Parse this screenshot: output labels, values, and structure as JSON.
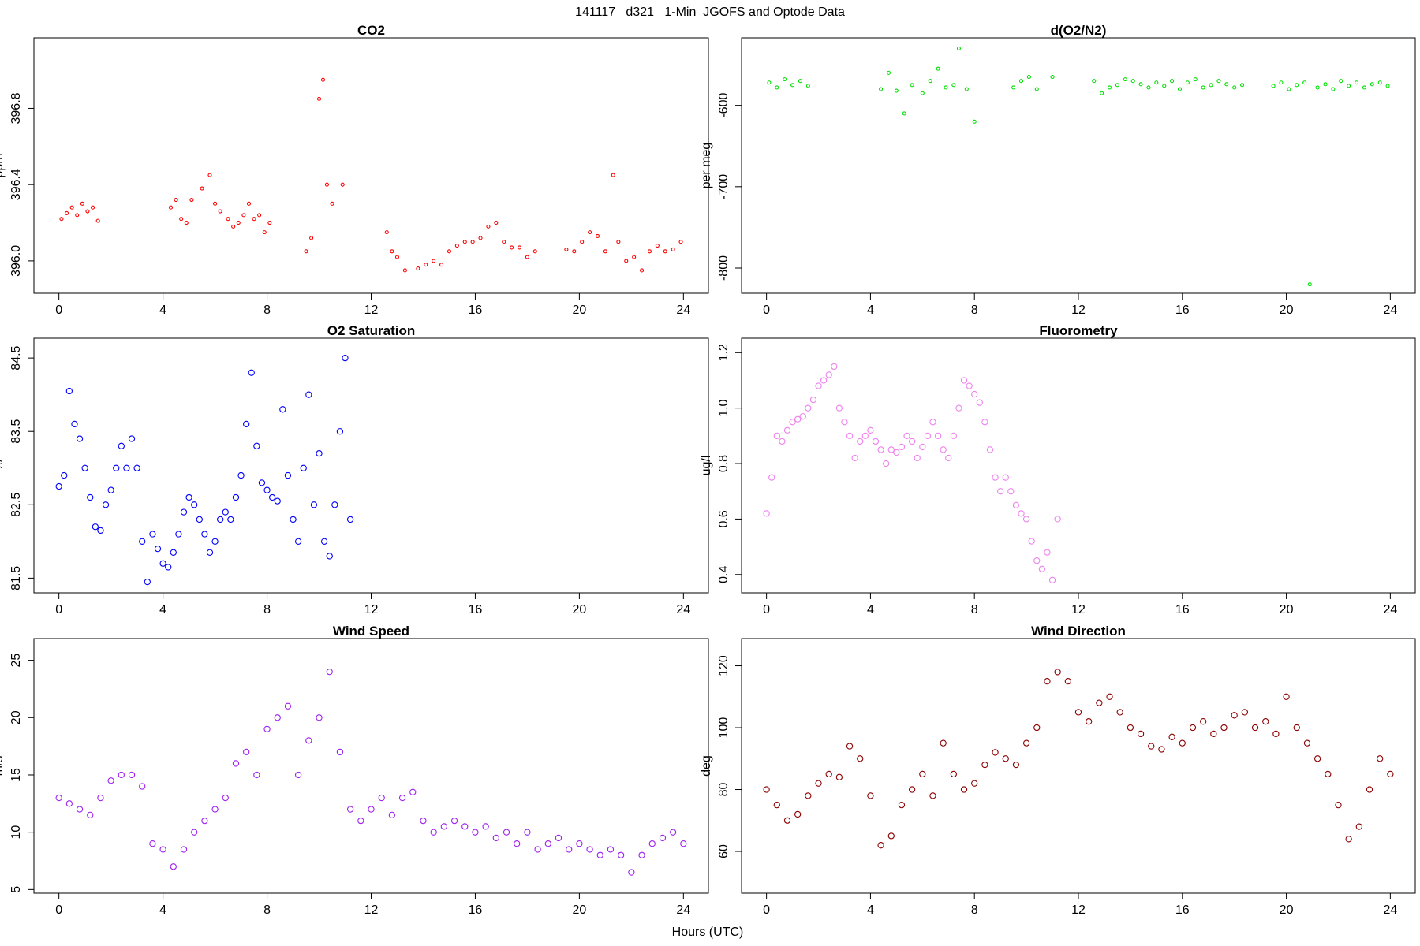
{
  "page_title": "141117   d321   1-Min  JGOFS and Optode Data",
  "x_label": "Hours (UTC)",
  "chart_data": [
    {
      "type": "scatter",
      "title": "CO2",
      "y_label": "ppm",
      "color": "#ff0000",
      "xlim": [
        -0.96,
        24.96
      ],
      "ylim": [
        395.83,
        397.17
      ],
      "xticks": [
        0,
        4,
        8,
        12,
        16,
        20,
        24
      ],
      "yticks": [
        {
          "value": 396,
          "label": "396.0"
        },
        396.4,
        396.8
      ],
      "x": [
        0.1,
        0.3,
        0.5,
        0.7,
        0.9,
        1.1,
        1.3,
        1.5,
        4.3,
        4.5,
        4.7,
        4.9,
        5.1,
        5.5,
        5.8,
        6.0,
        6.2,
        6.5,
        6.7,
        6.9,
        7.1,
        7.3,
        7.5,
        7.7,
        7.9,
        8.1,
        9.5,
        9.7,
        10.0,
        10.15,
        10.3,
        10.5,
        10.9,
        12.6,
        12.8,
        13.0,
        13.3,
        13.8,
        14.1,
        14.4,
        14.7,
        15.0,
        15.3,
        15.6,
        15.9,
        16.2,
        16.5,
        16.8,
        17.1,
        17.4,
        17.7,
        18.0,
        18.3,
        19.5,
        19.8,
        20.1,
        20.4,
        20.7,
        21.0,
        21.3,
        21.5,
        21.8,
        22.1,
        22.4,
        22.7,
        23.0,
        23.3,
        23.6,
        23.9
      ],
      "values": [
        396.22,
        396.25,
        396.28,
        396.24,
        396.3,
        396.26,
        396.28,
        396.21,
        396.28,
        396.32,
        396.22,
        396.2,
        396.32,
        396.38,
        396.45,
        396.3,
        396.26,
        396.22,
        396.18,
        396.2,
        396.24,
        396.3,
        396.22,
        396.24,
        396.15,
        396.2,
        396.05,
        396.12,
        396.85,
        396.95,
        396.4,
        396.3,
        396.4,
        396.15,
        396.05,
        396.02,
        395.95,
        395.96,
        395.98,
        396.0,
        395.98,
        396.05,
        396.08,
        396.1,
        396.1,
        396.12,
        396.18,
        396.2,
        396.1,
        396.07,
        396.07,
        396.02,
        396.05,
        396.06,
        396.05,
        396.1,
        396.15,
        396.13,
        396.05,
        396.45,
        396.1,
        396.0,
        396.02,
        395.95,
        396.05,
        396.08,
        396.05,
        396.06,
        396.1
      ]
    },
    {
      "type": "scatter",
      "title": "d(O2/N2)",
      "y_label": "per meg",
      "color": "#00e000",
      "xlim": [
        -0.96,
        24.96
      ],
      "ylim": [
        -831,
        -517
      ],
      "xticks": [
        0,
        4,
        8,
        12,
        16,
        20,
        24
      ],
      "yticks": [
        -800,
        -700,
        -600
      ],
      "x": [
        0.1,
        0.4,
        0.7,
        1.0,
        1.3,
        1.6,
        4.4,
        4.7,
        5.0,
        5.3,
        5.6,
        6.0,
        6.3,
        6.6,
        6.9,
        7.2,
        7.4,
        7.7,
        8.0,
        9.5,
        9.8,
        10.1,
        10.4,
        11.0,
        12.6,
        12.9,
        13.2,
        13.5,
        13.8,
        14.1,
        14.4,
        14.7,
        15.0,
        15.3,
        15.6,
        15.9,
        16.2,
        16.5,
        16.8,
        17.1,
        17.4,
        17.7,
        18.0,
        18.3,
        19.5,
        19.8,
        20.1,
        20.4,
        20.7,
        20.9,
        21.2,
        21.5,
        21.8,
        22.1,
        22.4,
        22.7,
        23.0,
        23.3,
        23.6,
        23.9
      ],
      "values": [
        -572,
        -578,
        -568,
        -575,
        -570,
        -576,
        -580,
        -560,
        -582,
        -610,
        -575,
        -585,
        -570,
        -555,
        -578,
        -575,
        -530,
        -580,
        -620,
        -578,
        -570,
        -565,
        -580,
        -565,
        -570,
        -585,
        -578,
        -575,
        -568,
        -570,
        -574,
        -578,
        -572,
        -576,
        -570,
        -580,
        -572,
        -568,
        -578,
        -575,
        -570,
        -574,
        -578,
        -575,
        -576,
        -572,
        -580,
        -575,
        -572,
        -820,
        -578,
        -574,
        -580,
        -570,
        -576,
        -572,
        -578,
        -574,
        -572,
        -576
      ]
    },
    {
      "type": "scatter",
      "title": "O2 Saturation",
      "y_label": "%",
      "color": "#0000ff",
      "xlim": [
        -0.96,
        24.96
      ],
      "ylim": [
        81.3,
        84.77
      ],
      "xticks": [
        0,
        4,
        8,
        12,
        16,
        20,
        24
      ],
      "yticks": [
        81.5,
        82.5,
        83.5,
        84.5
      ],
      "x": [
        0.0,
        0.2,
        0.4,
        0.6,
        0.8,
        1.0,
        1.2,
        1.4,
        1.6,
        1.8,
        2.0,
        2.2,
        2.4,
        2.6,
        2.8,
        3.0,
        3.2,
        3.4,
        3.6,
        3.8,
        4.0,
        4.2,
        4.4,
        4.6,
        4.8,
        5.0,
        5.2,
        5.4,
        5.6,
        5.8,
        6.0,
        6.2,
        6.4,
        6.6,
        6.8,
        7.0,
        7.2,
        7.4,
        7.6,
        7.8,
        8.0,
        8.2,
        8.4,
        8.6,
        8.8,
        9.0,
        9.2,
        9.4,
        9.6,
        9.8,
        10.0,
        10.2,
        10.4,
        10.6,
        10.8,
        11.0,
        11.2
      ],
      "values": [
        82.75,
        82.9,
        84.05,
        83.6,
        83.4,
        83.0,
        82.6,
        82.2,
        82.15,
        82.5,
        82.7,
        83.0,
        83.3,
        83.0,
        83.4,
        83.0,
        82.0,
        81.45,
        82.1,
        81.9,
        81.7,
        81.65,
        81.85,
        82.1,
        82.4,
        82.6,
        82.5,
        82.3,
        82.1,
        81.85,
        82.0,
        82.3,
        82.4,
        82.3,
        82.6,
        82.9,
        83.6,
        84.3,
        83.3,
        82.8,
        82.7,
        82.6,
        82.55,
        83.8,
        82.9,
        82.3,
        82.0,
        83.0,
        84.0,
        82.5,
        83.2,
        82.0,
        81.8,
        82.5,
        83.5,
        84.5,
        82.3
      ]
    },
    {
      "type": "scatter",
      "title": "Fluorometry",
      "y_label": "ug/l",
      "color": "#ee82ee",
      "xlim": [
        -0.96,
        24.96
      ],
      "ylim": [
        0.334,
        1.252
      ],
      "xticks": [
        0,
        4,
        8,
        12,
        16,
        20,
        24
      ],
      "yticks": [
        0.4,
        0.6,
        0.8,
        {
          "value": 1,
          "label": "1.0"
        },
        1.2
      ],
      "x": [
        0.0,
        0.2,
        0.4,
        0.6,
        0.8,
        1.0,
        1.2,
        1.4,
        1.6,
        1.8,
        2.0,
        2.2,
        2.4,
        2.6,
        2.8,
        3.0,
        3.2,
        3.4,
        3.6,
        3.8,
        4.0,
        4.2,
        4.4,
        4.6,
        4.8,
        5.0,
        5.2,
        5.4,
        5.6,
        5.8,
        6.0,
        6.2,
        6.4,
        6.6,
        6.8,
        7.0,
        7.2,
        7.4,
        7.6,
        7.8,
        8.0,
        8.2,
        8.4,
        8.6,
        8.8,
        9.0,
        9.2,
        9.4,
        9.6,
        9.8,
        10.0,
        10.2,
        10.4,
        10.6,
        10.8,
        11.0,
        11.2
      ],
      "values": [
        0.62,
        0.75,
        0.9,
        0.88,
        0.92,
        0.95,
        0.96,
        0.97,
        1.0,
        1.03,
        1.08,
        1.1,
        1.12,
        1.15,
        1.0,
        0.95,
        0.9,
        0.82,
        0.88,
        0.9,
        0.92,
        0.88,
        0.85,
        0.8,
        0.85,
        0.84,
        0.86,
        0.9,
        0.88,
        0.82,
        0.86,
        0.9,
        0.95,
        0.9,
        0.85,
        0.82,
        0.9,
        1.0,
        1.1,
        1.08,
        1.05,
        1.02,
        0.95,
        0.85,
        0.75,
        0.7,
        0.75,
        0.7,
        0.65,
        0.62,
        0.6,
        0.52,
        0.45,
        0.42,
        0.48,
        0.38,
        0.6
      ]
    },
    {
      "type": "scatter",
      "title": "Wind Speed",
      "y_label": "m/s",
      "color": "#a020f0",
      "xlim": [
        -0.96,
        24.96
      ],
      "ylim": [
        4.68,
        26.9
      ],
      "xticks": [
        0,
        4,
        8,
        12,
        16,
        20,
        24
      ],
      "yticks": [
        5,
        10,
        15,
        20,
        25
      ],
      "x": [
        0,
        0.4,
        0.8,
        1.2,
        1.6,
        2.0,
        2.4,
        2.8,
        3.2,
        3.6,
        4.0,
        4.4,
        4.8,
        5.2,
        5.6,
        6.0,
        6.4,
        6.8,
        7.2,
        7.6,
        8.0,
        8.4,
        8.8,
        9.2,
        9.6,
        10.0,
        10.4,
        10.8,
        11.2,
        11.6,
        12.0,
        12.4,
        12.8,
        13.2,
        13.6,
        14.0,
        14.4,
        14.8,
        15.2,
        15.6,
        16.0,
        16.4,
        16.8,
        17.2,
        17.6,
        18.0,
        18.4,
        18.8,
        19.2,
        19.6,
        20.0,
        20.4,
        20.8,
        21.2,
        21.6,
        22.0,
        22.4,
        22.8,
        23.2,
        23.6,
        24.0
      ],
      "values": [
        13,
        12.5,
        12,
        11.5,
        13,
        14.5,
        15,
        15,
        14,
        9,
        8.5,
        7,
        8.5,
        10,
        11,
        12,
        13,
        16,
        17,
        15,
        19,
        20,
        21,
        15,
        18,
        20,
        24,
        17,
        12,
        11,
        12,
        13,
        11.5,
        13,
        13.5,
        11,
        10,
        10.5,
        11,
        10.5,
        10,
        10.5,
        9.5,
        10,
        9,
        10,
        8.5,
        9,
        9.5,
        8.5,
        9,
        8.5,
        8,
        8.5,
        8,
        6.5,
        8,
        9,
        9.5,
        10,
        9
      ]
    },
    {
      "type": "scatter",
      "title": "Wind Direction",
      "y_label": "deg",
      "color": "#8b0000",
      "xlim": [
        -0.96,
        24.96
      ],
      "ylim": [
        46.5,
        128.8
      ],
      "xticks": [
        0,
        4,
        8,
        12,
        16,
        20,
        24
      ],
      "yticks": [
        60,
        80,
        100,
        120
      ],
      "x": [
        0,
        0.4,
        0.8,
        1.2,
        1.6,
        2.0,
        2.4,
        2.8,
        3.2,
        3.6,
        4.0,
        4.4,
        4.8,
        5.2,
        5.6,
        6.0,
        6.4,
        6.8,
        7.2,
        7.6,
        8.0,
        8.4,
        8.8,
        9.2,
        9.6,
        10.0,
        10.4,
        10.8,
        11.2,
        11.6,
        12.0,
        12.4,
        12.8,
        13.2,
        13.6,
        14.0,
        14.4,
        14.8,
        15.2,
        15.6,
        16.0,
        16.4,
        16.8,
        17.2,
        17.6,
        18.0,
        18.4,
        18.8,
        19.2,
        19.6,
        20.0,
        20.4,
        20.8,
        21.2,
        21.6,
        22.0,
        22.4,
        22.8,
        23.2,
        23.6,
        24.0
      ],
      "values": [
        80,
        75,
        70,
        72,
        78,
        82,
        85,
        84,
        94,
        90,
        78,
        62,
        65,
        75,
        80,
        85,
        78,
        95,
        85,
        80,
        82,
        88,
        92,
        90,
        88,
        95,
        100,
        115,
        118,
        115,
        105,
        102,
        108,
        110,
        105,
        100,
        98,
        94,
        93,
        97,
        95,
        100,
        102,
        98,
        100,
        104,
        105,
        100,
        102,
        98,
        110,
        100,
        95,
        90,
        85,
        75,
        64,
        68,
        80,
        90,
        85
      ]
    }
  ]
}
